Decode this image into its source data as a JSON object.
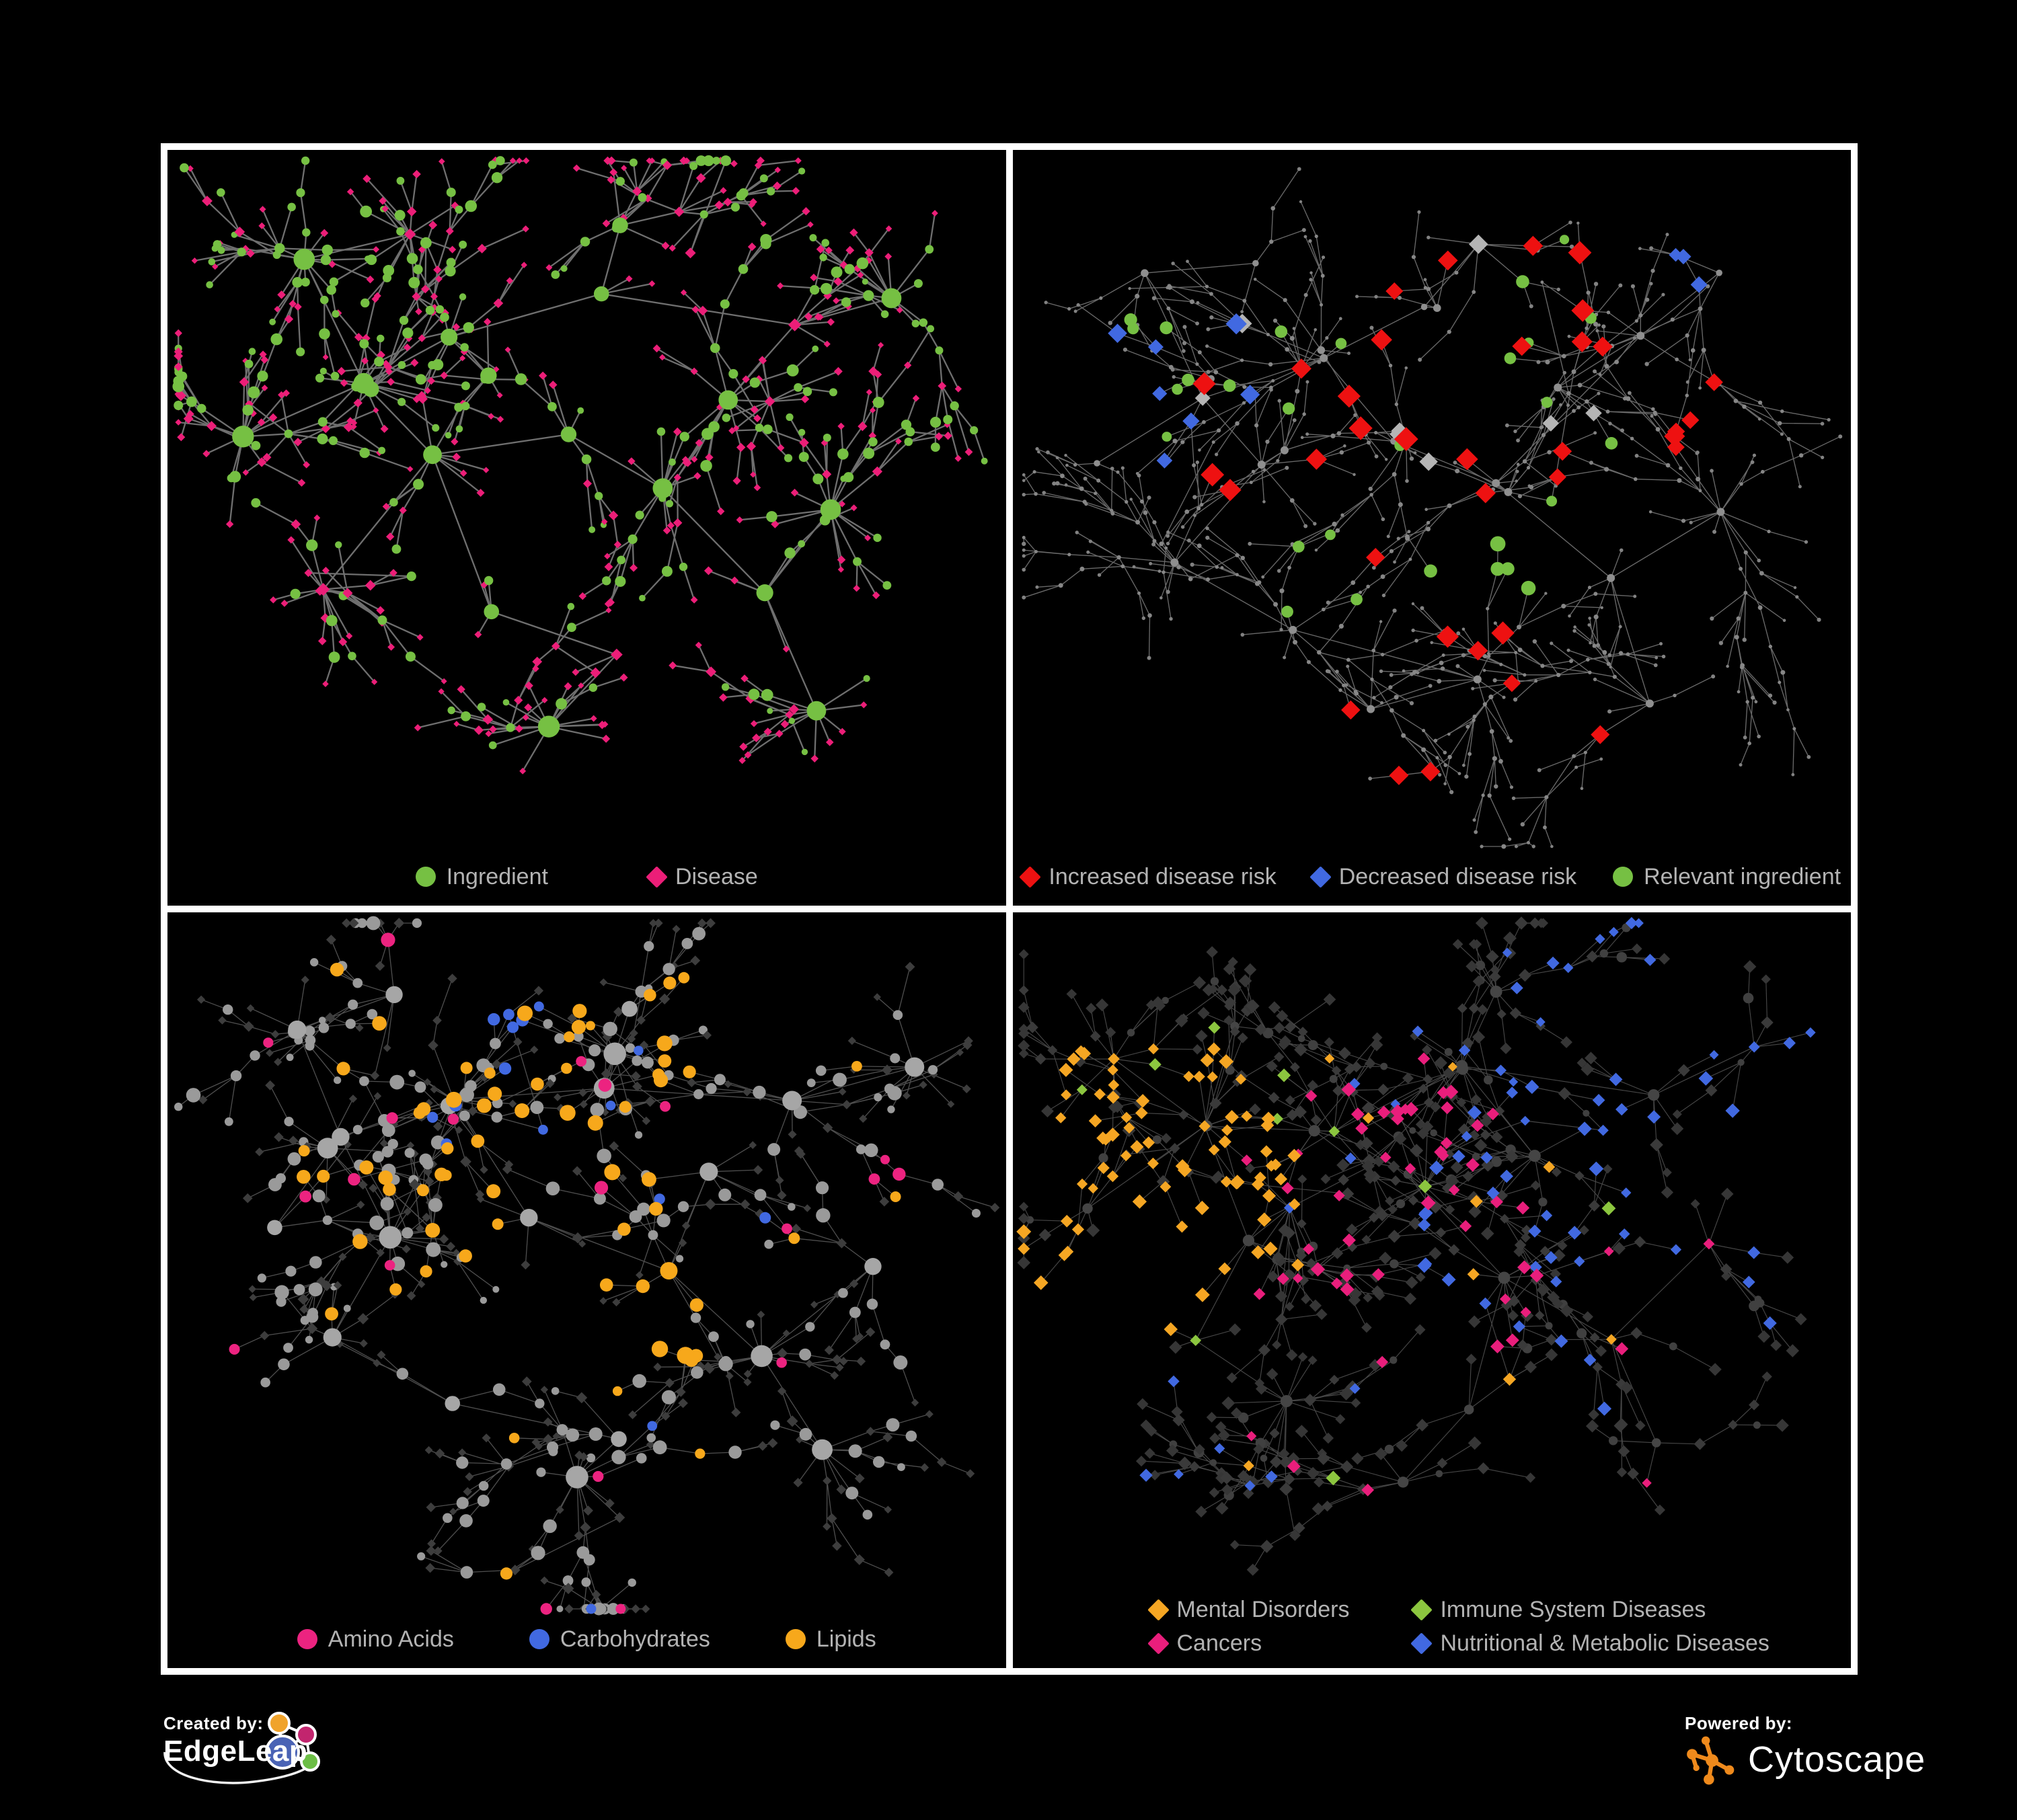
{
  "page": {
    "background": "#000000",
    "frame_color": "#ffffff"
  },
  "branding": {
    "created_by_label": "Created by:",
    "created_by_name": "EdgeLeap",
    "powered_by_label": "Powered by:",
    "powered_by_name": "Cytoscape",
    "edgeleap_logo_colors": {
      "orange": "#f0a32b",
      "pink": "#c2256e",
      "blue": "#4a63b5",
      "green": "#6cbe45",
      "stroke": "#ffffff"
    },
    "cytoscape_logo_color": "#ef8a1c"
  },
  "legend_text_color": "#b3b3b3",
  "network_layout": {
    "clusters": [
      [
        0.37,
        0.3
      ],
      [
        0.22,
        0.34
      ],
      [
        0.52,
        0.22
      ],
      [
        0.3,
        0.47
      ],
      [
        0.46,
        0.42
      ],
      [
        0.6,
        0.52
      ],
      [
        0.2,
        0.63
      ],
      [
        0.36,
        0.72
      ],
      [
        0.56,
        0.78
      ],
      [
        0.73,
        0.28
      ],
      [
        0.86,
        0.2
      ],
      [
        0.68,
        0.66
      ],
      [
        0.14,
        0.18
      ],
      [
        0.55,
        0.1
      ],
      [
        0.82,
        0.52
      ],
      [
        0.46,
        0.88
      ],
      [
        0.76,
        0.84
      ],
      [
        0.1,
        0.45
      ],
      [
        0.64,
        0.38
      ],
      [
        0.28,
        0.12
      ]
    ]
  },
  "panels": [
    {
      "id": "ingredient-disease",
      "legend": [
        {
          "label": "Ingredient",
          "shape": "circle",
          "color": "#76c043"
        },
        {
          "label": "Disease",
          "shape": "diamond",
          "color": "#ec1e78"
        }
      ],
      "network": {
        "seed": 7,
        "nodes": 640,
        "hubs": 22,
        "chainBias": 0.3,
        "extraLinks": 45,
        "edge": {
          "color": "#7c7c7c",
          "width": 2.3,
          "opacity": 0.9
        },
        "base": {
          "hub": {
            "shape": "circle",
            "color": "#76c043",
            "size": [
              9,
              17
            ]
          },
          "mid": {
            "shape": "circle",
            "color": "#76c043",
            "size": [
              6,
              9
            ]
          },
          "leaf": {
            "shape": "diamond",
            "color": "#ec1e78",
            "size": [
              4.5,
              6.5
            ]
          }
        },
        "mixes": [
          {
            "role": "leaf",
            "prob": 0.24,
            "shape": "circle",
            "color": "#76c043",
            "size": [
              4.5,
              7
            ]
          },
          {
            "role": "mid",
            "prob": 0.38,
            "shape": "diamond",
            "color": "#ec1e78",
            "size": [
              5.5,
              8
            ]
          },
          {
            "role": "hub",
            "prob": 0.1,
            "shape": "diamond",
            "color": "#ec1e78",
            "size": [
              8,
              11
            ]
          }
        ],
        "highlights": []
      }
    },
    {
      "id": "disease-risk",
      "legend": [
        {
          "label": "Increased disease risk",
          "shape": "diamond",
          "color": "#ee1111"
        },
        {
          "label": "Decreased disease risk",
          "shape": "diamond",
          "color": "#4169e1"
        },
        {
          "label": "Relevant ingredient",
          "shape": "circle",
          "color": "#76c043"
        }
      ],
      "network": {
        "seed": 11,
        "nodes": 700,
        "hubs": 26,
        "chainBias": 0.55,
        "extraLinks": 40,
        "edge": {
          "color": "#6f6f6f",
          "width": 1.35,
          "opacity": 0.95
        },
        "base": {
          "hub": {
            "shape": "circle",
            "color": "#8f8f8f",
            "size": [
              3.5,
              6
            ]
          },
          "mid": {
            "shape": "circle",
            "color": "#878787",
            "size": [
              2.4,
              3.6
            ]
          },
          "leaf": {
            "shape": "circle",
            "color": "#828282",
            "size": [
              2.2,
              3.2
            ]
          }
        },
        "mixes": [],
        "highlights": [
          {
            "count": 24,
            "region": [
              0.5,
              0.36,
              0.3
            ],
            "shape": "diamond",
            "color": "#ee1111",
            "size": [
              13,
              18
            ]
          },
          {
            "count": 5,
            "region": [
              0.75,
              0.42,
              0.12
            ],
            "shape": "diamond",
            "color": "#ee1111",
            "size": [
              12,
              16
            ]
          },
          {
            "count": 3,
            "region": [
              0.36,
              0.78,
              0.2
            ],
            "shape": "diamond",
            "color": "#ee1111",
            "size": [
              12,
              15
            ]
          },
          {
            "count": 3,
            "region": [
              0.6,
              0.9,
              0.12
            ],
            "shape": "diamond",
            "color": "#ee1111",
            "size": [
              12,
              15
            ]
          },
          {
            "count": 7,
            "region": [
              0.16,
              0.3,
              0.14
            ],
            "shape": "diamond",
            "color": "#4169e1",
            "size": [
              11,
              16
            ]
          },
          {
            "count": 3,
            "region": [
              0.87,
              0.16,
              0.09
            ],
            "shape": "diamond",
            "color": "#4169e1",
            "size": [
              10,
              13
            ]
          },
          {
            "count": 8,
            "region": [
              0.42,
              0.4,
              0.32
            ],
            "shape": "diamond",
            "color": "#b5b5b5",
            "size": [
              11,
              15
            ]
          },
          {
            "count": 24,
            "region": [
              0.42,
              0.36,
              0.33
            ],
            "shape": "circle",
            "color": "#76c043",
            "size": [
              7,
              10
            ]
          },
          {
            "count": 4,
            "region": [
              0.62,
              0.6,
              0.06
            ],
            "shape": "circle",
            "color": "#76c043",
            "size": [
              9,
              12
            ]
          }
        ]
      }
    },
    {
      "id": "nutrient-classes",
      "legend": [
        {
          "label": "Amino Acids",
          "shape": "circle",
          "color": "#ec2380"
        },
        {
          "label": "Carbohydrates",
          "shape": "circle",
          "color": "#4169e1"
        },
        {
          "label": "Lipids",
          "shape": "circle",
          "color": "#f7a81b"
        }
      ],
      "network": {
        "seed": 23,
        "nodes": 640,
        "hubs": 24,
        "chainBias": 0.36,
        "extraLinks": 55,
        "edge": {
          "color": "#9d9d9d",
          "width": 1.3,
          "opacity": 0.5
        },
        "base": {
          "hub": {
            "shape": "circle",
            "color": "#a6a6a6",
            "size": [
              10,
              17
            ]
          },
          "mid": {
            "shape": "circle",
            "color": "#9a9a9a",
            "size": [
              7,
              11
            ]
          },
          "leaf": {
            "shape": "diamond",
            "color": "#3d3d3d",
            "size": [
              5.5,
              7.5
            ]
          }
        },
        "mixes": [
          {
            "role": "leaf",
            "prob": 0.22,
            "shape": "circle",
            "color": "#9a9a9a",
            "size": [
              5,
              8
            ]
          },
          {
            "role": "mid",
            "prob": 0.3,
            "shape": "diamond",
            "color": "#3d3d3d",
            "size": [
              6,
              8.5
            ]
          }
        ],
        "highlights": [
          {
            "count": 46,
            "region": [
              0.4,
              0.26,
              0.27
            ],
            "shape": "circle",
            "color": "#f7a81b",
            "size": [
              8,
              12
            ]
          },
          {
            "count": 8,
            "region": [
              0.61,
              0.6,
              0.07
            ],
            "shape": "circle",
            "color": "#f7a81b",
            "size": [
              9,
              13
            ]
          },
          {
            "count": 14,
            "region": [
              0.5,
              0.55,
              0.48
            ],
            "shape": "circle",
            "color": "#f7a81b",
            "size": [
              7,
              10
            ]
          },
          {
            "count": 12,
            "region": [
              0.44,
              0.2,
              0.16
            ],
            "shape": "circle",
            "color": "#4169e1",
            "size": [
              7,
              10
            ]
          },
          {
            "count": 4,
            "region": [
              0.55,
              0.6,
              0.42
            ],
            "shape": "circle",
            "color": "#4169e1",
            "size": [
              7,
              9
            ]
          },
          {
            "count": 20,
            "region": [
              0.5,
              0.55,
              0.5
            ],
            "shape": "circle",
            "color": "#ec2380",
            "size": [
              7,
              11
            ]
          }
        ]
      }
    },
    {
      "id": "disease-categories",
      "legend": [
        {
          "label": "Mental Disorders",
          "shape": "diamond",
          "color": "#f5a623"
        },
        {
          "label": "Immune System Diseases",
          "shape": "diamond",
          "color": "#8cc63f"
        },
        {
          "label": "Cancers",
          "shape": "diamond",
          "color": "#e91e7c"
        },
        {
          "label": "Nutritional & Metabolic Diseases",
          "shape": "diamond",
          "color": "#4169e1"
        }
      ],
      "network": {
        "seed": 5,
        "nodes": 700,
        "hubs": 26,
        "chainBias": 0.4,
        "extraLinks": 60,
        "edge": {
          "color": "#9d9d9d",
          "width": 1.15,
          "opacity": 0.45
        },
        "base": {
          "hub": {
            "shape": "circle",
            "color": "#454545",
            "size": [
              5,
              9
            ]
          },
          "mid": {
            "shape": "diamond",
            "color": "#3a3a3a",
            "size": [
              7,
              10
            ]
          },
          "leaf": {
            "shape": "diamond",
            "color": "#363636",
            "size": [
              7,
              10
            ]
          }
        },
        "mixes": [
          {
            "role": "mid",
            "prob": 0.25,
            "shape": "circle",
            "color": "#404040",
            "size": [
              5,
              8
            ]
          }
        ],
        "highlights": [
          {
            "count": 72,
            "region": [
              0.16,
              0.4,
              0.18
            ],
            "shape": "diamond",
            "color": "#f5a623",
            "size": [
              8,
              11
            ]
          },
          {
            "count": 12,
            "region": [
              0.5,
              0.5,
              0.5
            ],
            "shape": "diamond",
            "color": "#f5a623",
            "size": [
              7,
              10
            ]
          },
          {
            "count": 42,
            "region": [
              0.46,
              0.46,
              0.2
            ],
            "shape": "diamond",
            "color": "#e91e7c",
            "size": [
              8,
              11
            ]
          },
          {
            "count": 12,
            "region": [
              0.5,
              0.55,
              0.5
            ],
            "shape": "diamond",
            "color": "#e91e7c",
            "size": [
              7,
              10
            ]
          },
          {
            "count": 34,
            "region": [
              0.72,
              0.48,
              0.25
            ],
            "shape": "diamond",
            "color": "#4169e1",
            "size": [
              8,
              11
            ]
          },
          {
            "count": 22,
            "region": [
              0.78,
              0.16,
              0.22
            ],
            "shape": "diamond",
            "color": "#4169e1",
            "size": [
              7,
              10
            ]
          },
          {
            "count": 16,
            "region": [
              0.45,
              0.72,
              0.45
            ],
            "shape": "diamond",
            "color": "#4169e1",
            "size": [
              7,
              10
            ]
          },
          {
            "count": 10,
            "region": [
              0.45,
              0.45,
              0.4
            ],
            "shape": "diamond",
            "color": "#8cc63f",
            "size": [
              8,
              11
            ]
          }
        ]
      }
    }
  ]
}
